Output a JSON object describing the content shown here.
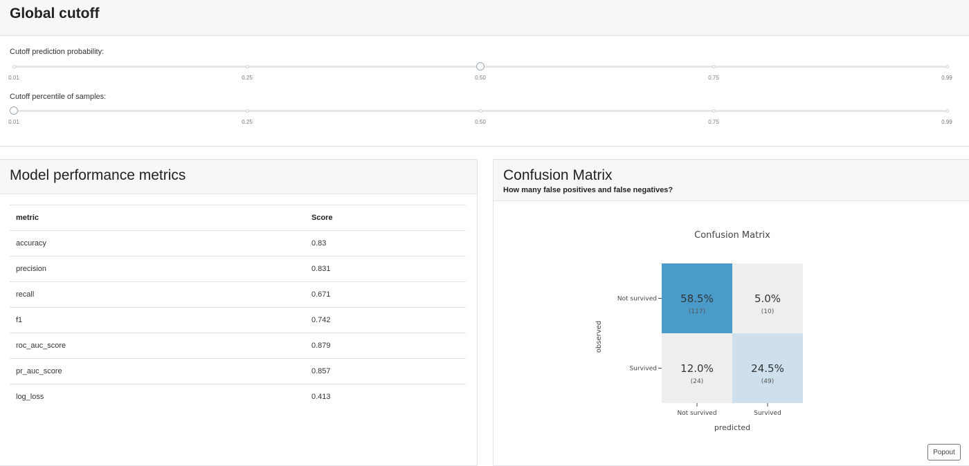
{
  "cutoff": {
    "title": "Global cutoff",
    "probability_slider": {
      "label": "Cutoff prediction probability:",
      "min": 0.01,
      "max": 0.99,
      "value": 0.5,
      "marks": [
        "0.01",
        "0.25",
        "0.50",
        "0.75",
        "0.99"
      ]
    },
    "percentile_slider": {
      "label": "Cutoff percentile of samples:",
      "min": 0.01,
      "max": 0.99,
      "value": 0.01,
      "marks": [
        "0.01",
        "0.25",
        "0.50",
        "0.75",
        "0.99"
      ]
    }
  },
  "metrics": {
    "title": "Model performance metrics",
    "columns": [
      "metric",
      "Score"
    ],
    "rows": [
      {
        "metric": "accuracy",
        "score": "0.83"
      },
      {
        "metric": "precision",
        "score": "0.831"
      },
      {
        "metric": "recall",
        "score": "0.671"
      },
      {
        "metric": "f1",
        "score": "0.742"
      },
      {
        "metric": "roc_auc_score",
        "score": "0.879"
      },
      {
        "metric": "pr_auc_score",
        "score": "0.857"
      },
      {
        "metric": "log_loss",
        "score": "0.413"
      }
    ]
  },
  "confusion": {
    "title": "Confusion Matrix",
    "subtitle": "How many false positives and false negatives?",
    "popout_label": "Popout",
    "colors": {
      "high": "#4a9bca",
      "mid": "#cde0ec",
      "low": "#eeeeee"
    }
  },
  "chart_data": {
    "type": "heatmap",
    "title": "Confusion Matrix",
    "xlabel": "predicted",
    "ylabel": "observed",
    "x_categories": [
      "Not survived",
      "Survived"
    ],
    "y_categories": [
      "Not survived",
      "Survived"
    ],
    "cells": [
      {
        "observed": "Not survived",
        "predicted": "Not survived",
        "percent": "58.5%",
        "count": "(117)",
        "value": 117
      },
      {
        "observed": "Not survived",
        "predicted": "Survived",
        "percent": "5.0%",
        "count": "(10)",
        "value": 10
      },
      {
        "observed": "Survived",
        "predicted": "Not survived",
        "percent": "12.0%",
        "count": "(24)",
        "value": 24
      },
      {
        "observed": "Survived",
        "predicted": "Survived",
        "percent": "24.5%",
        "count": "(49)",
        "value": 49
      }
    ]
  }
}
